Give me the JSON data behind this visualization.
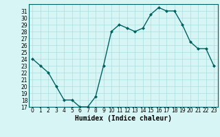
{
  "x": [
    0,
    1,
    2,
    3,
    4,
    5,
    6,
    7,
    8,
    9,
    10,
    11,
    12,
    13,
    14,
    15,
    16,
    17,
    18,
    19,
    20,
    21,
    22,
    23
  ],
  "y": [
    24,
    23,
    22,
    20,
    18,
    18,
    17,
    17,
    18.5,
    23,
    28,
    29,
    28.5,
    28,
    28.5,
    30.5,
    31.5,
    31,
    31,
    29,
    26.5,
    25.5,
    25.5,
    23
  ],
  "xlabel": "Humidex (Indice chaleur)",
  "ylim": [
    17,
    32
  ],
  "xlim": [
    -0.5,
    23.5
  ],
  "yticks": [
    17,
    18,
    19,
    20,
    21,
    22,
    23,
    24,
    25,
    26,
    27,
    28,
    29,
    30,
    31
  ],
  "xticks": [
    0,
    1,
    2,
    3,
    4,
    5,
    6,
    7,
    8,
    9,
    10,
    11,
    12,
    13,
    14,
    15,
    16,
    17,
    18,
    19,
    20,
    21,
    22,
    23
  ],
  "line_color": "#006060",
  "marker": "D",
  "marker_size": 2,
  "bg_color": "#d8f5f5",
  "grid_color": "#aadddd",
  "tick_fontsize": 5.5,
  "xlabel_fontsize": 7,
  "line_width": 1.0
}
